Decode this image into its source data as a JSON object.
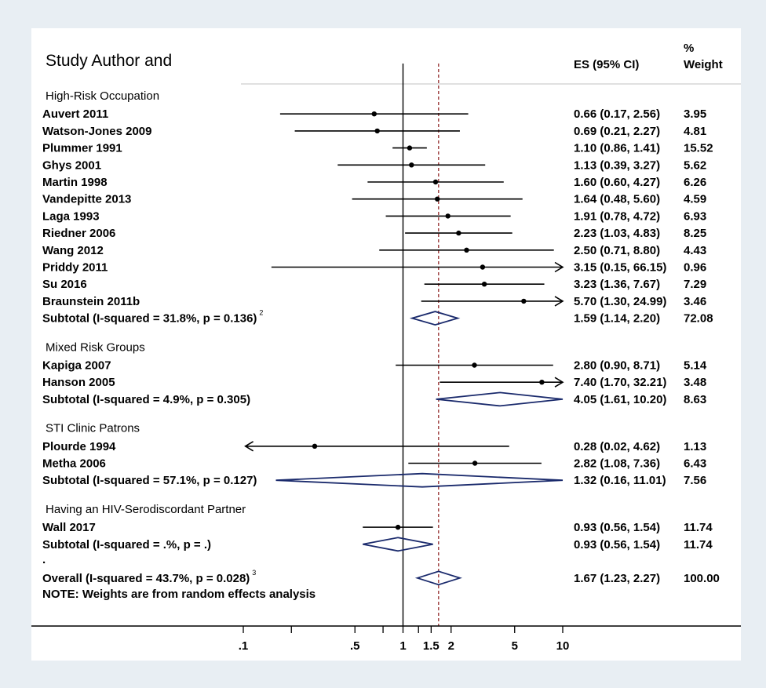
{
  "chart_data": {
    "type": "forest",
    "header": {
      "study": "Study Author and",
      "es": "ES (95% CI)",
      "weight_line1": "%",
      "weight_line2": "Weight"
    },
    "groups": [
      {
        "label": "High-Risk Occupation",
        "studies": [
          {
            "name": "Auvert 2011",
            "es": 0.66,
            "lo": 0.17,
            "hi": 2.56,
            "text": "0.66 (0.17, 2.56)",
            "weight": "3.95"
          },
          {
            "name": "Watson-Jones 2009",
            "es": 0.69,
            "lo": 0.21,
            "hi": 2.27,
            "text": "0.69 (0.21, 2.27)",
            "weight": "4.81"
          },
          {
            "name": "Plummer 1991",
            "es": 1.1,
            "lo": 0.86,
            "hi": 1.41,
            "text": "1.10 (0.86, 1.41)",
            "weight": "15.52"
          },
          {
            "name": "Ghys 2001",
            "es": 1.13,
            "lo": 0.39,
            "hi": 3.27,
            "text": "1.13 (0.39, 3.27)",
            "weight": "5.62"
          },
          {
            "name": "Martin 1998",
            "es": 1.6,
            "lo": 0.6,
            "hi": 4.27,
            "text": "1.60 (0.60, 4.27)",
            "weight": "6.26"
          },
          {
            "name": "Vandepitte 2013",
            "es": 1.64,
            "lo": 0.48,
            "hi": 5.6,
            "text": "1.64 (0.48, 5.60)",
            "weight": "4.59"
          },
          {
            "name": "Laga 1993",
            "es": 1.91,
            "lo": 0.78,
            "hi": 4.72,
            "text": "1.91 (0.78, 4.72)",
            "weight": "6.93"
          },
          {
            "name": "Riedner 2006",
            "es": 2.23,
            "lo": 1.03,
            "hi": 4.83,
            "text": "2.23 (1.03, 4.83)",
            "weight": "8.25"
          },
          {
            "name": "Wang 2012",
            "es": 2.5,
            "lo": 0.71,
            "hi": 8.8,
            "text": "2.50 (0.71, 8.80)",
            "weight": "4.43"
          },
          {
            "name": "Priddy 2011",
            "es": 3.15,
            "lo": 0.15,
            "hi": 66.15,
            "text": "3.15 (0.15, 66.15)",
            "weight": "0.96"
          },
          {
            "name": "Su 2016",
            "es": 3.23,
            "lo": 1.36,
            "hi": 7.67,
            "text": "3.23 (1.36, 7.67)",
            "weight": "7.29"
          },
          {
            "name": "Braunstein 2011b",
            "es": 5.7,
            "lo": 1.3,
            "hi": 24.99,
            "text": "5.70 (1.30, 24.99)",
            "weight": "3.46"
          }
        ],
        "subtotal": {
          "label": "Subtotal  (I-squared = 31.8%, p = 0.136)",
          "sup": "2",
          "es": 1.59,
          "lo": 1.14,
          "hi": 2.2,
          "text": "1.59 (1.14, 2.20)",
          "weight": "72.08"
        }
      },
      {
        "label": "Mixed Risk Groups",
        "studies": [
          {
            "name": "Kapiga 2007",
            "es": 2.8,
            "lo": 0.9,
            "hi": 8.71,
            "text": "2.80 (0.90, 8.71)",
            "weight": "5.14"
          },
          {
            "name": "Hanson 2005",
            "es": 7.4,
            "lo": 1.7,
            "hi": 32.21,
            "text": "7.40 (1.70, 32.21)",
            "weight": "3.48"
          }
        ],
        "subtotal": {
          "label": "Subtotal  (I-squared = 4.9%, p = 0.305)",
          "sup": "",
          "es": 4.05,
          "lo": 1.61,
          "hi": 10.2,
          "text": "4.05 (1.61, 10.20)",
          "weight": "8.63"
        }
      },
      {
        "label": "STI Clinic Patrons",
        "studies": [
          {
            "name": "Plourde 1994",
            "es": 0.28,
            "lo": 0.02,
            "hi": 4.62,
            "text": "0.28 (0.02, 4.62)",
            "weight": "1.13"
          },
          {
            "name": "Metha 2006",
            "es": 2.82,
            "lo": 1.08,
            "hi": 7.36,
            "text": "2.82 (1.08, 7.36)",
            "weight": "6.43"
          }
        ],
        "subtotal": {
          "label": "Subtotal  (I-squared = 57.1%, p = 0.127)",
          "sup": "",
          "es": 1.32,
          "lo": 0.16,
          "hi": 11.01,
          "text": "1.32 (0.16, 11.01)",
          "weight": "7.56"
        }
      },
      {
        "label": "Having an HIV-Serodiscordant Partner",
        "studies": [
          {
            "name": "Wall 2017",
            "es": 0.93,
            "lo": 0.56,
            "hi": 1.54,
            "text": "0.93 (0.56, 1.54)",
            "weight": "11.74"
          }
        ],
        "subtotal": {
          "label": "Subtotal  (I-squared = .%, p = .)",
          "sup": "",
          "es": 0.93,
          "lo": 0.56,
          "hi": 1.54,
          "text": "0.93 (0.56, 1.54)",
          "weight": "11.74"
        }
      }
    ],
    "dot_label": ".",
    "overall": {
      "label": "Overall  (I-squared = 43.7%, p = 0.028)",
      "sup": "3",
      "es": 1.67,
      "lo": 1.23,
      "hi": 2.27,
      "text": "1.67 (1.23, 2.27)",
      "weight": "100.00"
    },
    "note": "NOTE: Weights are from random effects analysis",
    "x_scale": "log",
    "xlim": [
      0.1,
      10
    ],
    "null_line": 1,
    "pooled_line": 1.67,
    "x_ticks": [
      {
        "value": 0.1,
        "label": ".1"
      },
      {
        "value": 0.2,
        "label": ""
      },
      {
        "value": 0.5,
        "label": ".5"
      },
      {
        "value": 0.75,
        "label": ""
      },
      {
        "value": 1,
        "label": "1"
      },
      {
        "value": 1.25,
        "label": ""
      },
      {
        "value": 1.5,
        "label": "1.5"
      },
      {
        "value": 2,
        "label": "2"
      },
      {
        "value": 5,
        "label": "5"
      },
      {
        "value": 10,
        "label": "10"
      }
    ],
    "colors": {
      "background": "#e8eef3",
      "panel": "#ffffff",
      "diamond": "#1a2a6c",
      "ref_line": "#8b1a1a",
      "text": "#000000"
    }
  }
}
